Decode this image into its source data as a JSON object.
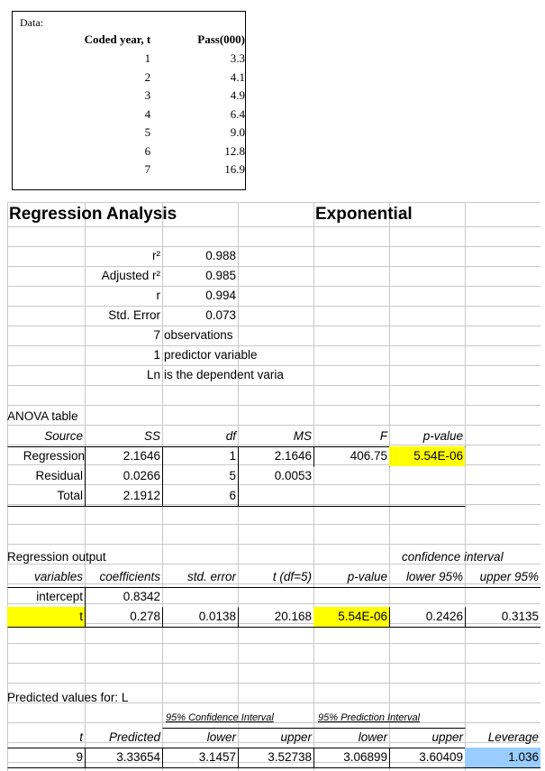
{
  "data_box": {
    "label": "Data:",
    "headers": [
      "Coded year, t",
      "Pass(000)"
    ],
    "rows": [
      [
        "1",
        "3.3"
      ],
      [
        "2",
        "4.1"
      ],
      [
        "3",
        "4.9"
      ],
      [
        "4",
        "6.4"
      ],
      [
        "5",
        "9.0"
      ],
      [
        "6",
        "12.8"
      ],
      [
        "7",
        "16.9"
      ]
    ]
  },
  "title": "Regression Analysis",
  "model": "Exponential",
  "stats": {
    "r2_label": "r²",
    "r2": "0.988",
    "adj_label": "Adjusted r²",
    "adj": "0.985",
    "r_label": "r",
    "r": "0.994",
    "se_label": "Std. Error",
    "se": "0.073",
    "n": "7",
    "n_text": "observations",
    "k": "1",
    "k_text": "predictor variable",
    "dep": "Ln",
    "dep_text": "is the dependent varia"
  },
  "anova": {
    "title": "ANOVA table",
    "headers": [
      "Source",
      "SS",
      "df",
      "MS",
      "F",
      "p-value"
    ],
    "regression": [
      "Regression",
      "2.1646",
      "1",
      "2.1646",
      "406.75",
      "5.54E-06"
    ],
    "residual": [
      "Residual",
      "0.0266",
      "5",
      "0.0053"
    ],
    "total": [
      "Total",
      "2.1912",
      "6"
    ]
  },
  "regout": {
    "title": "Regression output",
    "ci_title": "confidence interval",
    "headers": [
      "variables",
      "coefficients",
      "std. error",
      "t (df=5)",
      "p-value",
      "95% lower",
      "95% upper"
    ],
    "intercept": [
      "intercept",
      "0.8342"
    ],
    "t": [
      "t",
      "0.278",
      "0.0138",
      "20.168",
      "5.54E-06",
      "0.2426",
      "0.3135"
    ]
  },
  "pred": {
    "title": "Predicted values for: L",
    "ci_label": "95% Confidence Interval",
    "pi_label": "95% Prediction Interval",
    "headers": [
      "t",
      "Predicted",
      "lower",
      "upper",
      "lower",
      "upper",
      "Leverage"
    ],
    "row": [
      "9",
      "3.33654",
      "3.1457",
      "3.52738",
      "3.06899",
      "3.60409",
      "1.036"
    ]
  }
}
